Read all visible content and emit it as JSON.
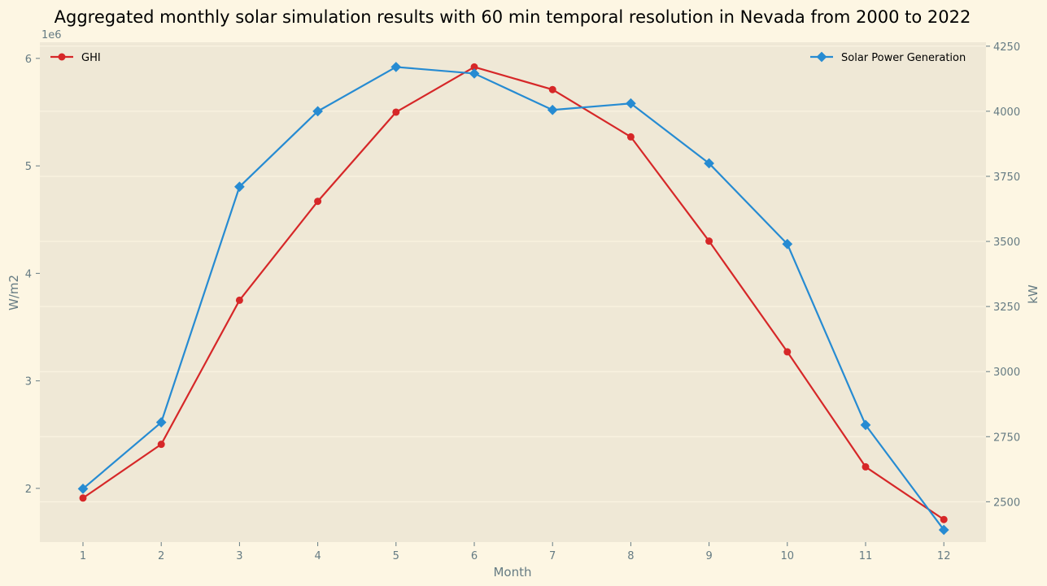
{
  "chart_data": {
    "type": "line",
    "title": "Aggregated monthly solar simulation results with 60 min temporal resolution in Nevada from 2000 to 2022",
    "xlabel": "Month",
    "x": [
      1,
      2,
      3,
      4,
      5,
      6,
      7,
      8,
      9,
      10,
      11,
      12
    ],
    "x_tick_labels": [
      "1",
      "2",
      "3",
      "4",
      "5",
      "6",
      "7",
      "8",
      "9",
      "10",
      "11",
      "12"
    ],
    "left_axis": {
      "label": "W/m2",
      "offset_label": "1e6",
      "ylim": [
        1.5,
        6.15
      ],
      "ticks": [
        2,
        3,
        4,
        5,
        6
      ],
      "tick_labels": [
        "2",
        "3",
        "4",
        "5",
        "6"
      ]
    },
    "right_axis": {
      "label": "kW",
      "ylim": [
        2345,
        4265
      ],
      "ticks": [
        2500,
        2750,
        3000,
        3250,
        3500,
        3750,
        4000,
        4250
      ],
      "tick_labels": [
        "2500",
        "2750",
        "3000",
        "3250",
        "3500",
        "3750",
        "4000",
        "4250"
      ]
    },
    "series": [
      {
        "name": "GHI",
        "axis": "left",
        "color": "#d62728",
        "marker": "circle",
        "values": [
          1.91,
          2.41,
          3.75,
          4.67,
          5.5,
          5.92,
          5.71,
          5.27,
          4.3,
          3.27,
          2.2,
          1.71
        ]
      },
      {
        "name": "Solar Power Generation",
        "axis": "right",
        "color": "#268bd2",
        "marker": "diamond",
        "values": [
          2550,
          2805,
          3710,
          4000,
          4170,
          4145,
          4005,
          4030,
          3800,
          3490,
          2795,
          2392
        ]
      }
    ],
    "legend": {
      "left_series": "top-left",
      "right_series": "top-right"
    },
    "grid": true,
    "colors": {
      "figure_background": "#fdf6e3",
      "axes_background": "#efe8d6",
      "grid": "#fdf6e3",
      "tick_text": "#657b83"
    }
  }
}
